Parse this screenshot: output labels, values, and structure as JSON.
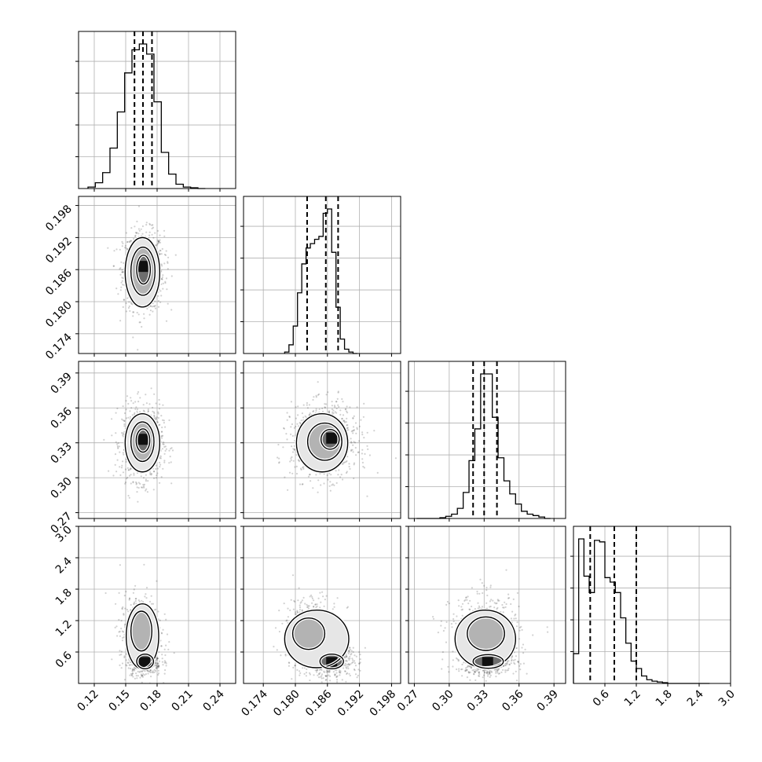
{
  "chart_data": {
    "type": "corner",
    "parameters": 4,
    "axes": [
      {
        "ticks": [
          0.12,
          0.15,
          0.18,
          0.21,
          0.24
        ],
        "tick_labels": [
          "0.12",
          "0.15",
          "0.18",
          "0.21",
          "0.24"
        ],
        "range": [
          0.105,
          0.255
        ]
      },
      {
        "ticks": [
          0.174,
          0.18,
          0.186,
          0.192,
          0.198
        ],
        "tick_labels": [
          "0.174",
          "0.180",
          "0.186",
          "0.192",
          "0.198"
        ],
        "range": [
          0.1703,
          0.1997
        ]
      },
      {
        "ticks": [
          0.27,
          0.3,
          0.33,
          0.36,
          0.39
        ],
        "tick_labels": [
          "0.27",
          "0.30",
          "0.33",
          "0.36",
          "0.39"
        ],
        "range": [
          0.265,
          0.4
        ]
      },
      {
        "ticks": [
          0.6,
          1.2,
          1.8,
          2.4,
          3.0
        ],
        "tick_labels": [
          "0.6",
          "1.2",
          "1.8",
          "2.4",
          "3.0"
        ],
        "range": [
          0.0,
          3.0
        ]
      }
    ],
    "histograms": [
      {
        "bins": [
          0.114,
          0.121,
          0.128,
          0.135,
          0.142,
          0.149,
          0.156,
          0.163,
          0.17,
          0.177,
          0.184,
          0.191,
          0.198,
          0.205,
          0.212,
          0.219,
          0.226
        ],
        "heights": [
          0.01,
          0.04,
          0.11,
          0.28,
          0.53,
          0.8,
          0.96,
          1.0,
          0.93,
          0.6,
          0.25,
          0.1,
          0.03,
          0.01,
          0.005,
          0.0
        ],
        "quantiles": [
          0.1584,
          0.1665,
          0.1751
        ]
      },
      {
        "bins": [
          0.178,
          0.1788,
          0.1796,
          0.1804,
          0.1812,
          0.182,
          0.1828,
          0.1836,
          0.1844,
          0.1852,
          0.186,
          0.1868,
          0.1876,
          0.1884,
          0.1892,
          0.19,
          0.1908,
          0.1916
        ],
        "heights": [
          0.01,
          0.06,
          0.19,
          0.42,
          0.62,
          0.73,
          0.76,
          0.79,
          0.81,
          0.97,
          1.0,
          0.7,
          0.32,
          0.1,
          0.03,
          0.01,
          0.0
        ],
        "quantiles": [
          0.1822,
          0.1857,
          0.188
        ]
      },
      {
        "bins": [
          0.272,
          0.277,
          0.282,
          0.287,
          0.292,
          0.297,
          0.302,
          0.307,
          0.312,
          0.317,
          0.322,
          0.327,
          0.332,
          0.337,
          0.342,
          0.347,
          0.352,
          0.357,
          0.362,
          0.367,
          0.372,
          0.377,
          0.382,
          0.387
        ],
        "heights": [
          0.0,
          0.0,
          0.0,
          0.0,
          0.005,
          0.015,
          0.03,
          0.07,
          0.18,
          0.4,
          0.62,
          1.0,
          1.0,
          0.7,
          0.42,
          0.26,
          0.17,
          0.1,
          0.05,
          0.03,
          0.02,
          0.01,
          0.0
        ],
        "quantiles": [
          0.3205,
          0.33,
          0.341
        ]
      },
      {
        "bins": [
          0.0,
          0.1,
          0.2,
          0.3,
          0.4,
          0.5,
          0.6,
          0.7,
          0.8,
          0.9,
          1.0,
          1.1,
          1.2,
          1.3,
          1.4,
          1.5,
          1.6,
          1.7,
          1.8,
          1.9,
          2.0,
          2.1,
          2.2,
          2.3,
          2.4,
          2.5,
          2.6
        ],
        "heights": [
          0.2,
          0.97,
          0.72,
          0.61,
          0.96,
          0.95,
          0.71,
          0.68,
          0.61,
          0.44,
          0.27,
          0.15,
          0.1,
          0.05,
          0.025,
          0.015,
          0.01,
          0.005,
          0.0,
          0.0,
          0.0,
          0.0,
          0.0,
          0.0,
          0.0,
          0.0
        ],
        "quantiles": [
          0.32,
          0.78,
          1.2
        ]
      }
    ],
    "pairs": [
      {
        "x": 0,
        "y": 1,
        "clusters": [
          {
            "mx": 0.167,
            "my": 0.1858,
            "sx": 0.0085,
            "sy": 0.0032,
            "w": 1.0
          }
        ],
        "contours": [
          {
            "cx": 0.166,
            "cy": 0.1855,
            "rx": 0.0165,
            "ry": 0.0065
          },
          {
            "cx": 0.1665,
            "cy": 0.1857,
            "rx": 0.0115,
            "ry": 0.0045
          },
          {
            "cx": 0.167,
            "cy": 0.186,
            "rx": 0.0065,
            "ry": 0.0027
          }
        ],
        "peak": {
          "x": 0.166,
          "y": 0.1866
        }
      },
      {
        "x": 0,
        "y": 2,
        "clusters": [
          {
            "mx": 0.166,
            "my": 0.33,
            "sx": 0.0085,
            "sy": 0.014,
            "w": 1.0
          }
        ],
        "contours": [
          {
            "cx": 0.166,
            "cy": 0.33,
            "rx": 0.0165,
            "ry": 0.025
          },
          {
            "cx": 0.166,
            "cy": 0.331,
            "rx": 0.011,
            "ry": 0.017
          },
          {
            "cx": 0.1665,
            "cy": 0.332,
            "rx": 0.0065,
            "ry": 0.01
          }
        ],
        "peak": {
          "x": 0.166,
          "y": 0.333
        }
      },
      {
        "x": 0,
        "y": 3,
        "clusters": [
          {
            "mx": 0.164,
            "my": 0.95,
            "sx": 0.0085,
            "sy": 0.32,
            "w": 0.6
          },
          {
            "mx": 0.168,
            "my": 0.42,
            "sx": 0.007,
            "sy": 0.12,
            "w": 0.4
          }
        ],
        "contours": [
          {
            "cx": 0.166,
            "cy": 0.9,
            "rx": 0.0155,
            "ry": 0.62
          },
          {
            "cx": 0.165,
            "cy": 1.0,
            "rx": 0.01,
            "ry": 0.38
          },
          {
            "cx": 0.1685,
            "cy": 0.42,
            "rx": 0.008,
            "ry": 0.14
          }
        ],
        "peak": {
          "x": 0.168,
          "y": 0.4
        }
      },
      {
        "x": 1,
        "y": 2,
        "clusters": [
          {
            "mx": 0.1855,
            "my": 0.331,
            "sx": 0.0027,
            "sy": 0.0135,
            "w": 1.0
          }
        ],
        "contours": [
          {
            "cx": 0.185,
            "cy": 0.33,
            "rx": 0.0048,
            "ry": 0.025
          },
          {
            "cx": 0.1855,
            "cy": 0.331,
            "rx": 0.0032,
            "ry": 0.016
          },
          {
            "cx": 0.1865,
            "cy": 0.333,
            "rx": 0.0017,
            "ry": 0.0085
          }
        ],
        "peak": {
          "x": 0.1868,
          "y": 0.334
        }
      },
      {
        "x": 1,
        "y": 3,
        "clusters": [
          {
            "mx": 0.183,
            "my": 0.95,
            "sx": 0.0024,
            "sy": 0.32,
            "w": 0.55
          },
          {
            "mx": 0.1868,
            "my": 0.42,
            "sx": 0.0022,
            "sy": 0.13,
            "w": 0.45
          }
        ],
        "contours": [
          {
            "cx": 0.184,
            "cy": 0.85,
            "rx": 0.006,
            "ry": 0.55
          },
          {
            "cx": 0.1825,
            "cy": 0.95,
            "rx": 0.003,
            "ry": 0.3
          },
          {
            "cx": 0.1868,
            "cy": 0.42,
            "rx": 0.0022,
            "ry": 0.14
          }
        ],
        "peak": {
          "x": 0.1868,
          "y": 0.4
        }
      },
      {
        "x": 2,
        "y": 3,
        "clusters": [
          {
            "mx": 0.331,
            "my": 0.95,
            "sx": 0.013,
            "sy": 0.32,
            "w": 0.6
          },
          {
            "mx": 0.333,
            "my": 0.42,
            "sx": 0.011,
            "sy": 0.13,
            "w": 0.4
          }
        ],
        "contours": [
          {
            "cx": 0.331,
            "cy": 0.85,
            "rx": 0.026,
            "ry": 0.55
          },
          {
            "cx": 0.3315,
            "cy": 0.95,
            "rx": 0.016,
            "ry": 0.32
          },
          {
            "cx": 0.3335,
            "cy": 0.42,
            "rx": 0.013,
            "ry": 0.13
          }
        ],
        "peak": {
          "x": 0.333,
          "y": 0.4
        }
      }
    ]
  }
}
